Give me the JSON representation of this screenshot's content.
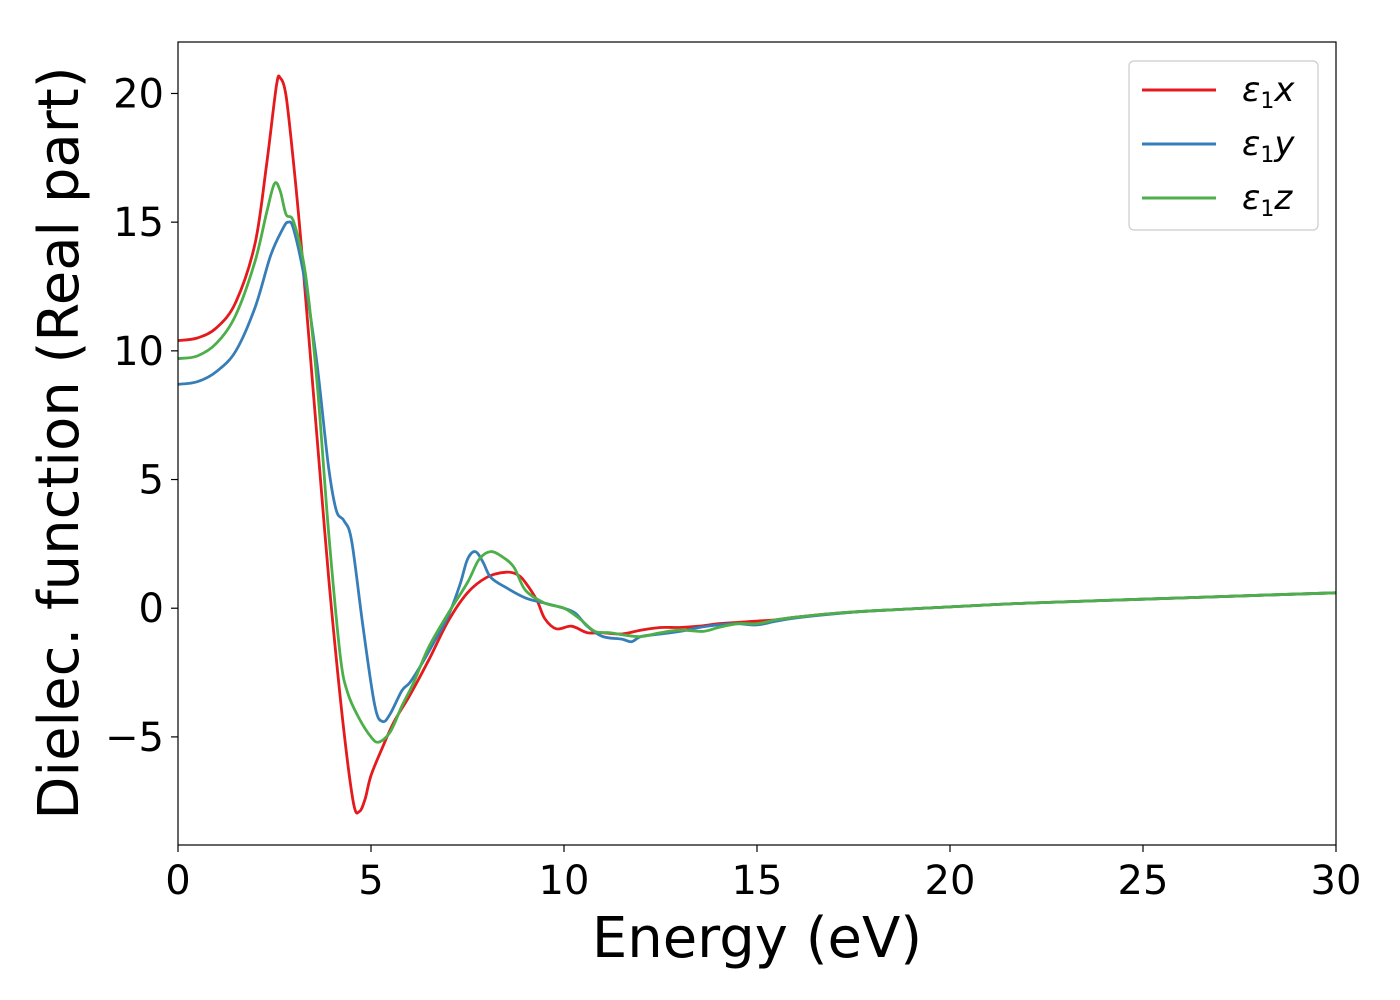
{
  "chart_data": {
    "type": "line",
    "xlabel": "Energy (eV)",
    "ylabel": "Dielec. function (Real part)",
    "xlim": [
      0,
      30
    ],
    "ylim": [
      -9.2,
      22
    ],
    "xticks": [
      0,
      5,
      10,
      15,
      20,
      25,
      30
    ],
    "yticks": [
      -5,
      0,
      5,
      10,
      15,
      20
    ],
    "xtick_labels": [
      "0",
      "5",
      "10",
      "15",
      "20",
      "25",
      "30"
    ],
    "ytick_labels": [
      "−5",
      "0",
      "5",
      "10",
      "15",
      "20"
    ],
    "grid": false,
    "legend_position": "top-right",
    "series": [
      {
        "name": "ε₁x",
        "label_main": "ε",
        "label_sub": "1",
        "label_tail": "x",
        "color": "#e41a1c",
        "points": [
          [
            0,
            10.4
          ],
          [
            0.5,
            10.5
          ],
          [
            1.0,
            10.9
          ],
          [
            1.5,
            11.9
          ],
          [
            2.0,
            14.2
          ],
          [
            2.3,
            17.3
          ],
          [
            2.55,
            20.3
          ],
          [
            2.65,
            20.6
          ],
          [
            2.8,
            19.9
          ],
          [
            3.0,
            17.2
          ],
          [
            3.2,
            14.0
          ],
          [
            3.5,
            8.5
          ],
          [
            3.8,
            3.0
          ],
          [
            4.0,
            -0.4
          ],
          [
            4.3,
            -4.8
          ],
          [
            4.55,
            -7.6
          ],
          [
            4.7,
            -7.9
          ],
          [
            4.85,
            -7.4
          ],
          [
            5.0,
            -6.5
          ],
          [
            5.3,
            -5.4
          ],
          [
            5.6,
            -4.4
          ],
          [
            6.0,
            -3.4
          ],
          [
            6.5,
            -2.0
          ],
          [
            7.0,
            -0.5
          ],
          [
            7.5,
            0.6
          ],
          [
            8.0,
            1.2
          ],
          [
            8.5,
            1.4
          ],
          [
            8.8,
            1.3
          ],
          [
            9.0,
            1.0
          ],
          [
            9.3,
            0.3
          ],
          [
            9.5,
            -0.4
          ],
          [
            9.8,
            -0.8
          ],
          [
            10.2,
            -0.7
          ],
          [
            10.6,
            -0.95
          ],
          [
            11.0,
            -0.95
          ],
          [
            11.5,
            -1.0
          ],
          [
            12.0,
            -0.85
          ],
          [
            12.5,
            -0.75
          ],
          [
            13.0,
            -0.75
          ],
          [
            13.5,
            -0.7
          ],
          [
            14.0,
            -0.6
          ],
          [
            14.5,
            -0.55
          ],
          [
            15.0,
            -0.5
          ],
          [
            15.5,
            -0.45
          ],
          [
            16.0,
            -0.35
          ],
          [
            17.0,
            -0.2
          ],
          [
            18.0,
            -0.1
          ],
          [
            20.0,
            0.05
          ],
          [
            22.0,
            0.2
          ],
          [
            25.0,
            0.35
          ],
          [
            28.0,
            0.5
          ],
          [
            30.0,
            0.6
          ]
        ]
      },
      {
        "name": "ε₁y",
        "label_main": "ε",
        "label_sub": "1",
        "label_tail": "y",
        "color": "#377eb8",
        "points": [
          [
            0,
            8.7
          ],
          [
            0.5,
            8.8
          ],
          [
            1.0,
            9.2
          ],
          [
            1.5,
            10.0
          ],
          [
            2.0,
            11.7
          ],
          [
            2.4,
            13.7
          ],
          [
            2.7,
            14.7
          ],
          [
            2.85,
            15.0
          ],
          [
            3.0,
            14.7
          ],
          [
            3.3,
            12.6
          ],
          [
            3.6,
            9.5
          ],
          [
            3.9,
            5.5
          ],
          [
            4.1,
            3.8
          ],
          [
            4.3,
            3.4
          ],
          [
            4.5,
            2.6
          ],
          [
            4.8,
            -0.8
          ],
          [
            5.1,
            -3.8
          ],
          [
            5.3,
            -4.4
          ],
          [
            5.5,
            -4.1
          ],
          [
            5.8,
            -3.2
          ],
          [
            6.0,
            -2.9
          ],
          [
            6.3,
            -2.2
          ],
          [
            6.6,
            -1.4
          ],
          [
            7.0,
            -0.3
          ],
          [
            7.3,
            0.9
          ],
          [
            7.5,
            1.9
          ],
          [
            7.7,
            2.2
          ],
          [
            7.9,
            1.8
          ],
          [
            8.1,
            1.2
          ],
          [
            8.5,
            0.8
          ],
          [
            9.0,
            0.4
          ],
          [
            9.5,
            0.2
          ],
          [
            10.0,
            0.0
          ],
          [
            10.3,
            -0.2
          ],
          [
            10.6,
            -0.7
          ],
          [
            11.0,
            -1.1
          ],
          [
            11.5,
            -1.2
          ],
          [
            11.75,
            -1.3
          ],
          [
            12.0,
            -1.1
          ],
          [
            12.5,
            -1.0
          ],
          [
            13.0,
            -0.9
          ],
          [
            13.5,
            -0.75
          ],
          [
            14.0,
            -0.65
          ],
          [
            14.5,
            -0.6
          ],
          [
            15.0,
            -0.65
          ],
          [
            15.5,
            -0.5
          ],
          [
            16.0,
            -0.38
          ],
          [
            17.0,
            -0.22
          ],
          [
            18.0,
            -0.1
          ],
          [
            20.0,
            0.05
          ],
          [
            22.0,
            0.2
          ],
          [
            25.0,
            0.35
          ],
          [
            28.0,
            0.5
          ],
          [
            30.0,
            0.6
          ]
        ]
      },
      {
        "name": "ε₁z",
        "label_main": "ε",
        "label_sub": "1",
        "label_tail": "z",
        "color": "#4daf4a",
        "points": [
          [
            0,
            9.7
          ],
          [
            0.5,
            9.8
          ],
          [
            1.0,
            10.3
          ],
          [
            1.5,
            11.4
          ],
          [
            2.0,
            13.5
          ],
          [
            2.3,
            15.4
          ],
          [
            2.5,
            16.5
          ],
          [
            2.65,
            16.2
          ],
          [
            2.8,
            15.3
          ],
          [
            3.0,
            15.0
          ],
          [
            3.3,
            13.0
          ],
          [
            3.6,
            8.8
          ],
          [
            3.9,
            3.0
          ],
          [
            4.2,
            -1.8
          ],
          [
            4.4,
            -3.3
          ],
          [
            4.7,
            -4.3
          ],
          [
            5.0,
            -5.0
          ],
          [
            5.2,
            -5.2
          ],
          [
            5.5,
            -4.8
          ],
          [
            5.8,
            -3.8
          ],
          [
            6.1,
            -2.9
          ],
          [
            6.5,
            -1.5
          ],
          [
            7.0,
            -0.2
          ],
          [
            7.5,
            1.0
          ],
          [
            7.8,
            1.9
          ],
          [
            8.1,
            2.2
          ],
          [
            8.4,
            2.0
          ],
          [
            8.7,
            1.6
          ],
          [
            9.0,
            0.7
          ],
          [
            9.5,
            0.2
          ],
          [
            10.0,
            0.0
          ],
          [
            10.4,
            -0.4
          ],
          [
            10.8,
            -0.9
          ],
          [
            11.2,
            -0.95
          ],
          [
            11.6,
            -1.05
          ],
          [
            12.0,
            -1.1
          ],
          [
            12.5,
            -0.95
          ],
          [
            13.0,
            -0.85
          ],
          [
            13.6,
            -0.9
          ],
          [
            14.0,
            -0.75
          ],
          [
            14.5,
            -0.6
          ],
          [
            15.0,
            -0.6
          ],
          [
            15.5,
            -0.45
          ],
          [
            16.0,
            -0.35
          ],
          [
            17.0,
            -0.2
          ],
          [
            18.0,
            -0.1
          ],
          [
            20.0,
            0.05
          ],
          [
            22.0,
            0.2
          ],
          [
            25.0,
            0.35
          ],
          [
            28.0,
            0.5
          ],
          [
            30.0,
            0.6
          ]
        ]
      }
    ]
  }
}
